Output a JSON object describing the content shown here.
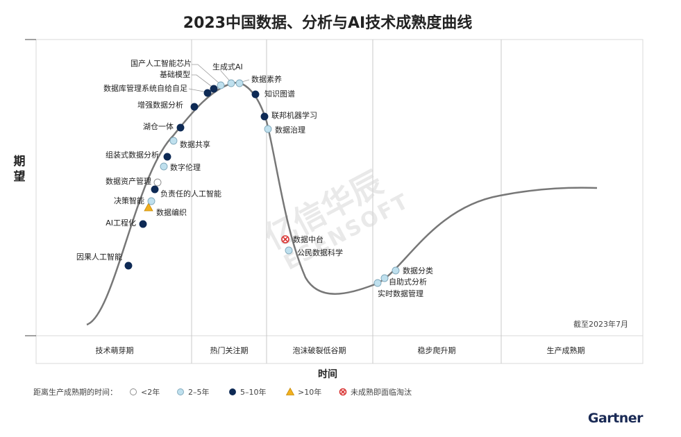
{
  "chart_data": {
    "type": "scatter",
    "title": "2023中国数据、分析与AI技术成熟度曲线",
    "ylabel": "期望",
    "xlabel": "时间",
    "as_of": "截至2023年7月",
    "phases": [
      "技术萌芽期",
      "热门关注期",
      "泡沫破裂低谷期",
      "稳步爬升期",
      "生产成熟期"
    ],
    "legend": {
      "title": "距离生产成熟期的时间：",
      "items": [
        {
          "key": "lt2",
          "label": "<2年",
          "color": "#ffffff"
        },
        {
          "key": "2to5",
          "label": "2–5年",
          "color": "#bfe0ee"
        },
        {
          "key": "5to10",
          "label": "5–10年",
          "color": "#0e2a55"
        },
        {
          "key": "gt10",
          "label": ">10年",
          "color": "#f2b01e"
        },
        {
          "key": "obsolete",
          "label": "未成熟即面临淘汰",
          "color": "#d8302f"
        }
      ]
    },
    "points": [
      {
        "name": "因果人工智能",
        "key": "5to10"
      },
      {
        "name": "AI工程化",
        "key": "5to10"
      },
      {
        "name": "数据编织",
        "key": "gt10"
      },
      {
        "name": "决策智能",
        "key": "2to5"
      },
      {
        "name": "负责任的人工智能",
        "key": "5to10"
      },
      {
        "name": "数据资产管理",
        "key": "lt2"
      },
      {
        "name": "数字伦理",
        "key": "2to5"
      },
      {
        "name": "组装式数据分析",
        "key": "5to10"
      },
      {
        "name": "数据共享",
        "key": "2to5"
      },
      {
        "name": "湖仓一体",
        "key": "5to10"
      },
      {
        "name": "增强数据分析",
        "key": "5to10"
      },
      {
        "name": "数据库管理系统自给自足",
        "key": "5to10"
      },
      {
        "name": "基础模型",
        "key": "5to10"
      },
      {
        "name": "国产人工智能芯片",
        "key": "2to5"
      },
      {
        "name": "生成式AI",
        "key": "2to5"
      },
      {
        "name": "数据素养",
        "key": "2to5"
      },
      {
        "name": "知识图谱",
        "key": "5to10"
      },
      {
        "name": "联邦机器学习",
        "key": "5to10"
      },
      {
        "name": "数据治理",
        "key": "2to5"
      },
      {
        "name": "数据中台",
        "key": "obsolete"
      },
      {
        "name": "公民数据科学",
        "key": "2to5"
      },
      {
        "name": "实时数据管理",
        "key": "2to5"
      },
      {
        "name": "自助式分析",
        "key": "2to5"
      },
      {
        "name": "数据分类",
        "key": "2to5"
      }
    ]
  },
  "brand": "Gartner",
  "watermark": {
    "cn": "亿信华辰",
    "en": "ESENSOFT"
  },
  "colors": {
    "curve": "#777777",
    "grid": "#c8c8c8",
    "navy": "#0e2a55",
    "light": "#bfe0ee"
  }
}
